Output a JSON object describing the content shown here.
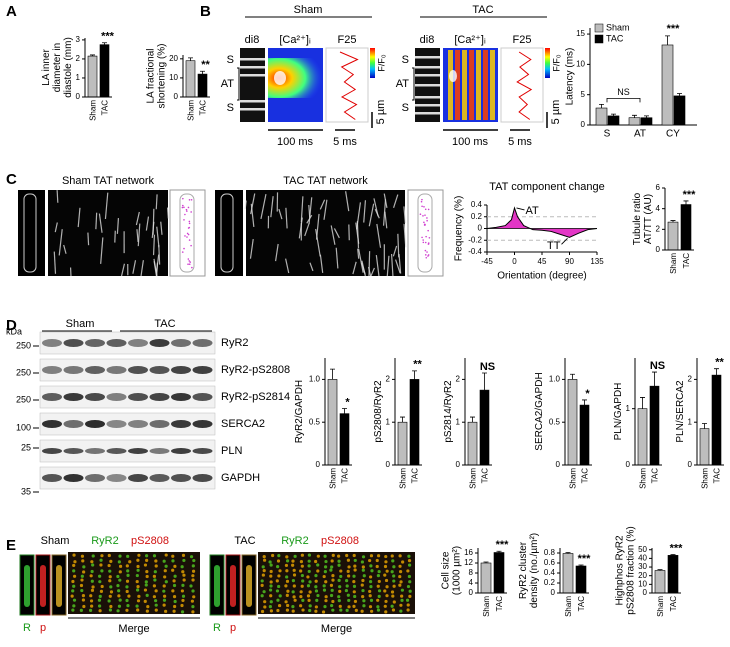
{
  "figure": {
    "panel_labels": [
      "A",
      "B",
      "C",
      "D",
      "E"
    ],
    "b": {
      "groups": [
        {
          "title": "Sham",
          "headers": [
            "di8",
            "[Ca²⁺]ᵢ",
            "F25"
          ],
          "row_labels": [
            "S",
            "AT",
            "S"
          ],
          "scale_labels": [
            "100 ms",
            "5 ms",
            "5 µm"
          ],
          "colorbar": "F/F₀"
        },
        {
          "title": "TAC",
          "headers": [
            "di8",
            "[Ca²⁺]ᵢ",
            "F25"
          ],
          "row_labels": [
            "S",
            "AT",
            "S"
          ],
          "scale_labels": [
            "100 ms",
            "5 ms",
            "5 µm"
          ],
          "colorbar": "F/F₀"
        }
      ]
    },
    "c": {
      "image_titles": [
        "Sham TAT network",
        "TAC TAT network"
      ]
    },
    "d": {
      "kda": "kDa",
      "markers": [
        250,
        250,
        250,
        100,
        25,
        35
      ],
      "groups": [
        "Sham",
        "TAC"
      ],
      "bands": [
        "RyR2",
        "RyR2-pS2808",
        "RyR2-pS2814",
        "SERCA2",
        "PLN",
        "GAPDH"
      ]
    },
    "e": {
      "groups": [
        {
          "title": "Sham",
          "stains": [
            "RyR2",
            "pS2808"
          ],
          "channel_labels": [
            "R",
            "p",
            "Merge"
          ]
        },
        {
          "title": "TAC",
          "stains": [
            "RyR2",
            "pS2808"
          ],
          "channel_labels": [
            "R",
            "p",
            "Merge"
          ]
        }
      ]
    }
  },
  "chart_data": [
    {
      "type": "bar",
      "ylabel": [
        "LA inner",
        "diameter in",
        "diastole (mm)"
      ],
      "categories": [
        "Sham",
        "TAC"
      ],
      "values": [
        2.15,
        2.75
      ],
      "errors": [
        0.06,
        0.1
      ],
      "colors": [
        "#bdbdbd",
        "#000000"
      ],
      "ylim": [
        0,
        3.1
      ],
      "yticks": [
        0,
        1,
        2,
        3
      ],
      "significance": "***"
    },
    {
      "type": "bar",
      "ylabel": [
        "LA fractional",
        "shortening (%)"
      ],
      "categories": [
        "Sham",
        "TAC"
      ],
      "values": [
        19,
        12
      ],
      "errors": [
        1.5,
        1.5
      ],
      "colors": [
        "#bdbdbd",
        "#000000"
      ],
      "ylim": [
        0,
        22
      ],
      "yticks": [
        0,
        10,
        20
      ],
      "significance": "**"
    },
    {
      "type": "grouped-bar",
      "ylabel": [
        "Latency (ms)"
      ],
      "categories": [
        "S",
        "AT",
        "CY"
      ],
      "series": [
        {
          "name": "Sham",
          "color": "#bdbdbd",
          "values": [
            2.8,
            1.2,
            13.2
          ],
          "errors": [
            0.6,
            0.4,
            1.5
          ]
        },
        {
          "name": "TAC",
          "color": "#000000",
          "values": [
            1.5,
            1.2,
            4.8
          ],
          "errors": [
            0.3,
            0.3,
            0.4
          ]
        }
      ],
      "ylim": [
        0,
        16
      ],
      "yticks": [
        0,
        5,
        10,
        15
      ],
      "annotations": [
        "NS",
        "***"
      ],
      "legend": "top-left"
    },
    {
      "type": "area",
      "title": "TAT component change",
      "ylabel": [
        "Frequency (%)"
      ],
      "xlabel": "Orientation (degree)",
      "x": [
        -45,
        -30,
        -15,
        -5,
        0,
        5,
        15,
        30,
        45,
        60,
        75,
        90,
        105,
        120,
        135
      ],
      "values": [
        0,
        0.02,
        0.05,
        0.15,
        0.35,
        0.2,
        0.05,
        -0.02,
        -0.03,
        -0.05,
        -0.1,
        -0.15,
        -0.08,
        -0.02,
        0
      ],
      "color": "#e020c0",
      "xlim": [
        -45,
        135
      ],
      "xticks": [
        -45,
        0,
        45,
        90,
        135
      ],
      "ylim": [
        -0.4,
        0.4
      ],
      "yticks": [
        -0.4,
        -0.2,
        0,
        0.2,
        0.4
      ],
      "reference_lines": [
        0.2,
        -0.2
      ],
      "annotations": [
        "AT",
        "TT"
      ]
    },
    {
      "type": "bar",
      "ylabel": [
        "Tubule ratio",
        "AT/TT (AU)"
      ],
      "categories": [
        "Sham",
        "TAC"
      ],
      "values": [
        2.7,
        4.4
      ],
      "errors": [
        0.15,
        0.35
      ],
      "colors": [
        "#bdbdbd",
        "#000000"
      ],
      "ylim": [
        0,
        6
      ],
      "yticks": [
        0,
        2,
        4,
        6
      ],
      "significance": "***"
    },
    {
      "type": "bar",
      "ylabel": [
        "RyR2/GAPDH"
      ],
      "categories": [
        "Sham",
        "TAC"
      ],
      "values": [
        1.0,
        0.6
      ],
      "errors": [
        0.12,
        0.06
      ],
      "colors": [
        "#bdbdbd",
        "#000000"
      ],
      "ylim": [
        0,
        1.25
      ],
      "yticks": [
        0,
        0.5,
        {
          "value": 1,
          "label": "1.0"
        }
      ],
      "significance": "*"
    },
    {
      "type": "bar",
      "ylabel": [
        "pS2808/RyR2"
      ],
      "categories": [
        "Sham",
        "TAC"
      ],
      "values": [
        1.0,
        2.0
      ],
      "errors": [
        0.12,
        0.2
      ],
      "colors": [
        "#bdbdbd",
        "#000000"
      ],
      "ylim": [
        0,
        2.5
      ],
      "yticks": [
        0,
        1,
        2
      ],
      "significance": "**"
    },
    {
      "type": "bar",
      "ylabel": [
        "pS2814/RyR2"
      ],
      "categories": [
        "Sham",
        "TAC"
      ],
      "values": [
        1.0,
        1.75
      ],
      "errors": [
        0.12,
        0.4
      ],
      "colors": [
        "#bdbdbd",
        "#000000"
      ],
      "ylim": [
        0,
        2.5
      ],
      "yticks": [
        0,
        1,
        2
      ],
      "significance": "NS"
    },
    {
      "type": "bar",
      "ylabel": [
        "SERCA2/GAPDH"
      ],
      "categories": [
        "Sham",
        "TAC"
      ],
      "values": [
        1.0,
        0.7
      ],
      "errors": [
        0.06,
        0.06
      ],
      "colors": [
        "#bdbdbd",
        "#000000"
      ],
      "ylim": [
        0,
        1.25
      ],
      "yticks": [
        0,
        0.5,
        {
          "value": 1,
          "label": "1.0"
        }
      ],
      "significance": "*"
    },
    {
      "type": "bar",
      "ylabel": [
        "PLN/GAPDH"
      ],
      "categories": [
        "Sham",
        "TAC"
      ],
      "values": [
        1.0,
        1.4
      ],
      "errors": [
        0.2,
        0.25
      ],
      "colors": [
        "#bdbdbd",
        "#000000"
      ],
      "ylim": [
        0,
        1.9
      ],
      "yticks": [
        0,
        1
      ],
      "significance": "NS"
    },
    {
      "type": "bar",
      "ylabel": [
        "PLN/SERCA2"
      ],
      "categories": [
        "Sham",
        "TAC"
      ],
      "values": [
        0.85,
        2.1
      ],
      "errors": [
        0.12,
        0.15
      ],
      "colors": [
        "#bdbdbd",
        "#000000"
      ],
      "ylim": [
        0,
        2.5
      ],
      "yticks": [
        0,
        1,
        2
      ],
      "significance": "**"
    },
    {
      "type": "bar",
      "ylabel": [
        "Cell size",
        "(1000 µm²)"
      ],
      "categories": [
        "Sham",
        "TAC"
      ],
      "values": [
        12,
        16.2
      ],
      "errors": [
        0.4,
        0.5
      ],
      "colors": [
        "#bdbdbd",
        "#000000"
      ],
      "ylim": [
        0,
        18
      ],
      "yticks": [
        0,
        4,
        8,
        12,
        16
      ],
      "significance": "***"
    },
    {
      "type": "bar",
      "ylabel": [
        "RyR2 cluster",
        "density (no./µm²)"
      ],
      "categories": [
        "Sham",
        "TAC"
      ],
      "values": [
        0.79,
        0.54
      ],
      "errors": [
        0.02,
        0.02
      ],
      "colors": [
        "#bdbdbd",
        "#000000"
      ],
      "ylim": [
        0,
        0.9
      ],
      "yticks": [
        0,
        0.2,
        0.4,
        0.6,
        0.8
      ],
      "significance": "***"
    },
    {
      "type": "bar",
      "ylabel": [
        "Highphos RyR2",
        "pS2808 fraction (%)"
      ],
      "categories": [
        "Sham",
        "TAC"
      ],
      "values": [
        26,
        43.5
      ],
      "errors": [
        1,
        1
      ],
      "colors": [
        "#bdbdbd",
        "#000000"
      ],
      "ylim": [
        0,
        52
      ],
      "yticks": [
        0,
        10,
        20,
        30,
        40,
        50
      ],
      "significance": "***"
    }
  ]
}
